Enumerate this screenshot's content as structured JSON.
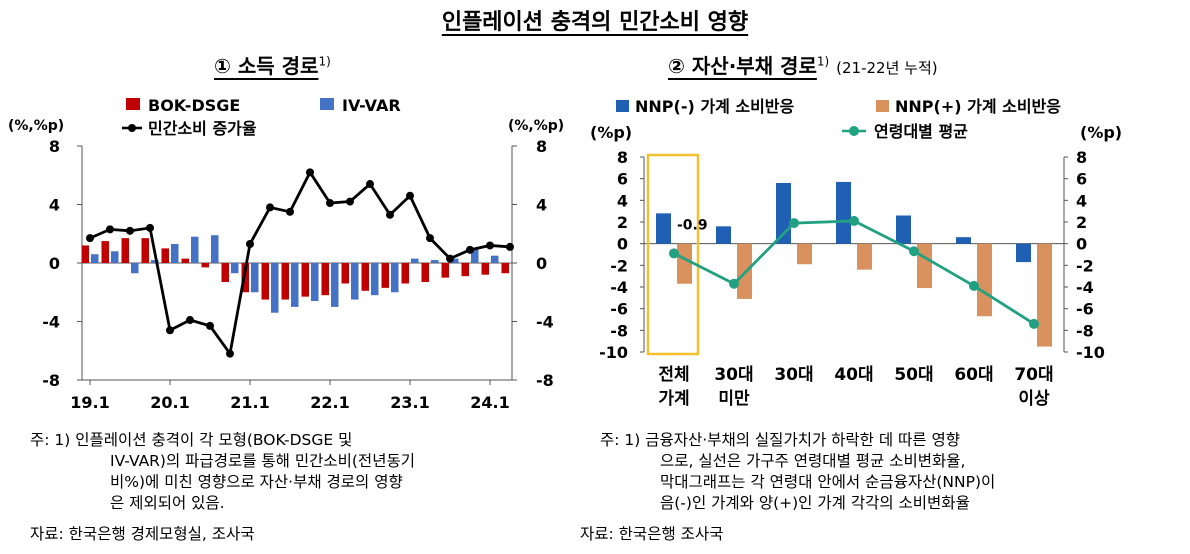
{
  "title": "인플레이션 충격의 민간소비 영향",
  "left": {
    "title": "① 소득 경로",
    "title_sup": "1)",
    "notes": [
      "주: 1) 인플레이션 충격이 각 모형(BOK-DSGE 및",
      "IV-VAR)의 파급경로를 통해 민간소비(전년동기",
      "비%)에 미친 영향으로 자산·부채 경로의 영향",
      "은 제외되어 있음."
    ],
    "source": "자료: 한국은행 경제모형실, 조사국"
  },
  "right": {
    "title": "② 자산·부채 경로",
    "title_sup": "1)",
    "title_note": "(21-22년 누적)",
    "notes": [
      "주: 1) 금융자산·부채의 실질가치가 하락한 데 따른 영향",
      "으로, 실선은 가구주 연령대별 평균 소비변화율,",
      "막대그래프는 각 연령대 안에서 순금융자산(NNP)이",
      "음(-)인 가계와 양(+)인 가계 각각의 소비변화율"
    ],
    "source": "자료: 한국은행 조사국"
  },
  "chart_data": [
    {
      "type": "bar",
      "ylabel_left": "(%,%p)",
      "ylabel_right": "(%,%p)",
      "ylim": [
        -8,
        8
      ],
      "yticks": [
        -8,
        -4,
        0,
        4,
        8
      ],
      "xtick_labels": [
        "19.1",
        "20.1",
        "21.1",
        "22.1",
        "23.1",
        "24.1"
      ],
      "xtick_index": [
        0,
        4,
        8,
        12,
        16,
        20
      ],
      "legend": [
        "BOK-DSGE",
        "IV-VAR",
        "민간소비 증가율"
      ],
      "colors": {
        "dsge": "#C00000",
        "ivvar": "#4472C4",
        "line": "#000000"
      },
      "series": [
        {
          "name": "BOK-DSGE",
          "kind": "bar",
          "values": [
            1.2,
            1.5,
            1.7,
            1.7,
            1.0,
            0.3,
            -0.3,
            -1.3,
            -2.0,
            -2.5,
            -2.5,
            -2.3,
            -2.2,
            -1.4,
            -1.9,
            -1.7,
            -1.4,
            -1.3,
            -1.0,
            -0.9,
            -0.8,
            -0.7
          ]
        },
        {
          "name": "IV-VAR",
          "kind": "bar",
          "values": [
            0.6,
            0.8,
            -0.7,
            0.2,
            1.3,
            1.8,
            1.9,
            -0.7,
            -2.0,
            -3.4,
            -3.0,
            -2.6,
            -3.0,
            -2.5,
            -2.2,
            -2.0,
            0.3,
            0.2,
            0.3,
            1.0,
            0.5,
            0.0
          ]
        },
        {
          "name": "민간소비 증가율",
          "kind": "line",
          "values": [
            1.7,
            2.3,
            2.2,
            2.4,
            -4.6,
            -3.9,
            -4.3,
            -6.2,
            1.3,
            3.8,
            3.5,
            6.2,
            4.1,
            4.2,
            5.4,
            3.3,
            4.6,
            1.7,
            0.3,
            0.9,
            1.2,
            1.1
          ]
        }
      ]
    },
    {
      "type": "bar",
      "ylabel_left": "(%p)",
      "ylabel_right": "(%p)",
      "ylim": [
        -10,
        8
      ],
      "yticks": [
        -10,
        -8,
        -6,
        -4,
        -2,
        0,
        2,
        4,
        6,
        8
      ],
      "categories": [
        "전체 가계",
        "30대 미만",
        "30대",
        "40대",
        "50대",
        "60대",
        "70대 이상"
      ],
      "category_lines": [
        [
          "전체",
          "가계"
        ],
        [
          "30대",
          "미만"
        ],
        [
          "30대"
        ],
        [
          "40대"
        ],
        [
          "50대"
        ],
        [
          "60대"
        ],
        [
          "70대",
          "이상"
        ]
      ],
      "legend": [
        "NNP(-) 가계 소비반응",
        "NNP(+) 가계 소비반응",
        "연령대별 평균"
      ],
      "colors": {
        "neg": "#1F60B4",
        "pos": "#D9925E",
        "line": "#22A082",
        "highlight": "#F2C12E"
      },
      "annotation": "-0.9",
      "series": [
        {
          "name": "NNP(-) 가계 소비반응",
          "kind": "bar",
          "values": [
            2.8,
            1.6,
            5.6,
            5.7,
            2.6,
            0.6,
            -1.7
          ]
        },
        {
          "name": "NNP(+) 가계 소비반응",
          "kind": "bar",
          "values": [
            -3.7,
            -5.1,
            -1.9,
            -2.4,
            -4.1,
            -6.7,
            -9.5
          ]
        },
        {
          "name": "연령대별 평균",
          "kind": "line",
          "values": [
            -0.9,
            -3.7,
            1.9,
            2.1,
            -0.7,
            -3.9,
            -7.4
          ]
        }
      ]
    }
  ]
}
